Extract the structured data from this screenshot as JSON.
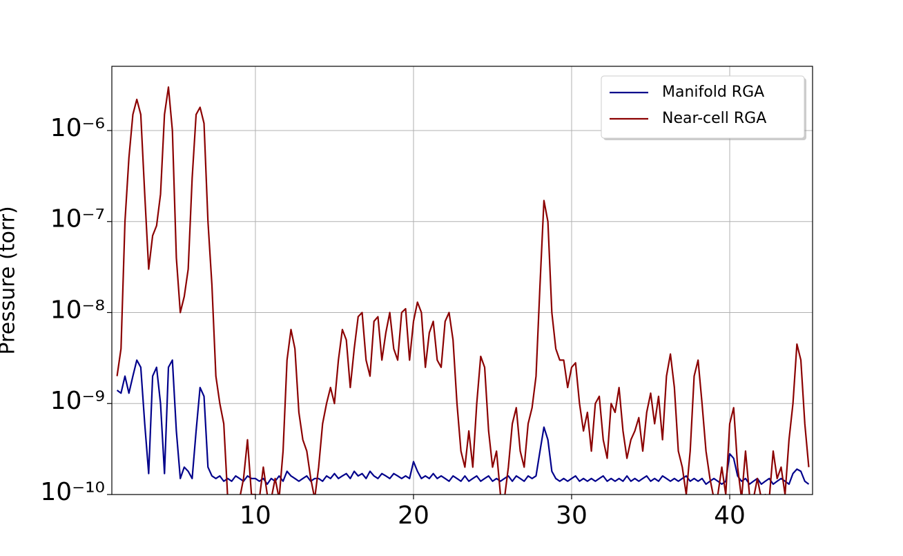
{
  "chart_data": {
    "type": "line",
    "y_label": "Pressure (torr)",
    "log_y": true,
    "grid": true,
    "legend": "upper right",
    "xlim": [
      0.92,
      45.24
    ],
    "xticks": [
      10,
      20,
      30,
      40
    ],
    "ylim": [
      1e-10,
      5.08e-06
    ],
    "yticks": [
      {
        "value": 1e-10,
        "label": "10⁻¹⁰"
      },
      {
        "value": 1e-09,
        "label": "10⁻⁹"
      },
      {
        "value": 1e-08,
        "label": "10⁻⁸"
      },
      {
        "value": 1e-07,
        "label": "10⁻⁷"
      },
      {
        "value": 1e-06,
        "label": "10⁻⁶"
      }
    ],
    "x": [
      1.25,
      1.5,
      1.75,
      2,
      2.25,
      2.5,
      2.75,
      3,
      3.25,
      3.5,
      3.75,
      4,
      4.25,
      4.5,
      4.75,
      5,
      5.25,
      5.5,
      5.75,
      6,
      6.25,
      6.5,
      6.75,
      7,
      7.25,
      7.5,
      7.75,
      8,
      8.25,
      8.5,
      8.75,
      9,
      9.25,
      9.5,
      9.75,
      10,
      10.25,
      10.5,
      10.75,
      11,
      11.25,
      11.5,
      11.75,
      12,
      12.25,
      12.5,
      12.75,
      13,
      13.25,
      13.5,
      13.75,
      14,
      14.25,
      14.5,
      14.75,
      15,
      15.25,
      15.5,
      15.75,
      16,
      16.25,
      16.5,
      16.75,
      17,
      17.25,
      17.5,
      17.75,
      18,
      18.25,
      18.5,
      18.75,
      19,
      19.25,
      19.5,
      19.75,
      20,
      20.25,
      20.5,
      20.75,
      21,
      21.25,
      21.5,
      21.75,
      22,
      22.25,
      22.5,
      22.75,
      23,
      23.25,
      23.5,
      23.75,
      24,
      24.25,
      24.5,
      24.75,
      25,
      25.25,
      25.5,
      25.75,
      26,
      26.25,
      26.5,
      26.75,
      27,
      27.25,
      27.5,
      27.75,
      28,
      28.25,
      28.5,
      28.75,
      29,
      29.25,
      29.5,
      29.75,
      30,
      30.25,
      30.5,
      30.75,
      31,
      31.25,
      31.5,
      31.75,
      32,
      32.25,
      32.5,
      32.75,
      33,
      33.25,
      33.5,
      33.75,
      34,
      34.25,
      34.5,
      34.75,
      35,
      35.25,
      35.5,
      35.75,
      36,
      36.25,
      36.5,
      36.75,
      37,
      37.25,
      37.5,
      37.75,
      38,
      38.25,
      38.5,
      38.75,
      39,
      39.25,
      39.5,
      39.75,
      40,
      40.25,
      40.5,
      40.75,
      41,
      41.25,
      41.5,
      41.75,
      42,
      42.25,
      42.5,
      42.75,
      43,
      43.25,
      43.5,
      43.75,
      44,
      44.25,
      44.5,
      44.75,
      45
    ],
    "series": [
      {
        "name": "Manifold RGA",
        "color": "#00008b",
        "values": [
          1.4e-09,
          1.3e-09,
          2e-09,
          1.3e-09,
          2e-09,
          3e-09,
          2.5e-09,
          6e-10,
          1.7e-10,
          2e-09,
          2.5e-09,
          1e-09,
          1.7e-10,
          2.5e-09,
          3e-09,
          5e-10,
          1.5e-10,
          2e-10,
          1.8e-10,
          1.5e-10,
          5e-10,
          1.5e-09,
          1.2e-09,
          2e-10,
          1.6e-10,
          1.5e-10,
          1.6e-10,
          1.4e-10,
          1.5e-10,
          1.4e-10,
          1.6e-10,
          1.5e-10,
          1.4e-10,
          1.6e-10,
          1.5e-10,
          1.5e-10,
          1.4e-10,
          1.5e-10,
          1.3e-10,
          1.5e-10,
          1.4e-10,
          1.6e-10,
          1.4e-10,
          1.8e-10,
          1.6e-10,
          1.5e-10,
          1.4e-10,
          1.5e-10,
          1.6e-10,
          1.4e-10,
          1.5e-10,
          1.5e-10,
          1.4e-10,
          1.6e-10,
          1.5e-10,
          1.7e-10,
          1.5e-10,
          1.6e-10,
          1.7e-10,
          1.5e-10,
          1.8e-10,
          1.6e-10,
          1.7e-10,
          1.5e-10,
          1.8e-10,
          1.6e-10,
          1.5e-10,
          1.7e-10,
          1.6e-10,
          1.5e-10,
          1.7e-10,
          1.6e-10,
          1.5e-10,
          1.6e-10,
          1.5e-10,
          2.3e-10,
          1.8e-10,
          1.5e-10,
          1.6e-10,
          1.5e-10,
          1.7e-10,
          1.5e-10,
          1.6e-10,
          1.5e-10,
          1.4e-10,
          1.6e-10,
          1.5e-10,
          1.4e-10,
          1.6e-10,
          1.4e-10,
          1.5e-10,
          1.6e-10,
          1.4e-10,
          1.5e-10,
          1.6e-10,
          1.4e-10,
          1.5e-10,
          1.4e-10,
          1.5e-10,
          1.6e-10,
          1.4e-10,
          1.6e-10,
          1.5e-10,
          1.4e-10,
          1.6e-10,
          1.5e-10,
          1.6e-10,
          3e-10,
          5.5e-10,
          4e-10,
          1.8e-10,
          1.5e-10,
          1.4e-10,
          1.5e-10,
          1.4e-10,
          1.5e-10,
          1.6e-10,
          1.4e-10,
          1.5e-10,
          1.4e-10,
          1.5e-10,
          1.4e-10,
          1.5e-10,
          1.6e-10,
          1.4e-10,
          1.5e-10,
          1.4e-10,
          1.5e-10,
          1.4e-10,
          1.6e-10,
          1.4e-10,
          1.5e-10,
          1.4e-10,
          1.5e-10,
          1.6e-10,
          1.4e-10,
          1.5e-10,
          1.4e-10,
          1.6e-10,
          1.5e-10,
          1.4e-10,
          1.5e-10,
          1.4e-10,
          1.5e-10,
          1.6e-10,
          1.4e-10,
          1.5e-10,
          1.4e-10,
          1.5e-10,
          1.3e-10,
          1.4e-10,
          1.5e-10,
          1.4e-10,
          1.3e-10,
          1.4e-10,
          2.8e-10,
          2.5e-10,
          1.6e-10,
          1.4e-10,
          1.5e-10,
          1.3e-10,
          1.4e-10,
          1.5e-10,
          1.3e-10,
          1.4e-10,
          1.5e-10,
          1.3e-10,
          1.4e-10,
          1.5e-10,
          1.4e-10,
          1.3e-10,
          1.7e-10,
          1.9e-10,
          1.8e-10,
          1.4e-10,
          1.3e-10
        ]
      },
      {
        "name": "Near-cell RGA",
        "color": "#8b0000",
        "values": [
          2e-09,
          4e-09,
          1e-07,
          5e-07,
          1.5e-06,
          2.2e-06,
          1.5e-06,
          2e-07,
          3e-08,
          7e-08,
          9e-08,
          2e-07,
          1.5e-06,
          3e-06,
          1e-06,
          4e-08,
          1e-08,
          1.5e-08,
          3e-08,
          3e-07,
          1.5e-06,
          1.8e-06,
          1.2e-06,
          1e-07,
          2e-08,
          2e-09,
          1e-09,
          6e-10,
          9e-11,
          9e-11,
          9e-11,
          9e-11,
          1.5e-10,
          4e-10,
          1e-10,
          1e-10,
          9e-11,
          2e-10,
          1e-10,
          9e-11,
          1.5e-10,
          9e-11,
          3e-10,
          3e-09,
          6.5e-09,
          4e-09,
          8e-10,
          4e-10,
          3e-10,
          1.5e-10,
          9e-11,
          2e-10,
          6e-10,
          1e-09,
          1.5e-09,
          1e-09,
          3e-09,
          6.5e-09,
          5e-09,
          1.5e-09,
          4e-09,
          9e-09,
          1e-08,
          3e-09,
          2e-09,
          8e-09,
          9e-09,
          3e-09,
          6e-09,
          1e-08,
          4e-09,
          3e-09,
          1e-08,
          1.1e-08,
          3e-09,
          8e-09,
          1.3e-08,
          1e-08,
          2.5e-09,
          6e-09,
          8e-09,
          3e-09,
          2.5e-09,
          8e-09,
          1e-08,
          5e-09,
          1e-09,
          3e-10,
          2e-10,
          5e-10,
          2e-10,
          1e-09,
          3.3e-09,
          2.5e-09,
          5e-10,
          2e-10,
          3e-10,
          1e-10,
          9e-11,
          2e-10,
          6e-10,
          9e-10,
          3e-10,
          2e-10,
          6e-10,
          9e-10,
          2e-09,
          2e-08,
          1.7e-07,
          1e-07,
          1e-08,
          4e-09,
          3e-09,
          3e-09,
          1.5e-09,
          2.5e-09,
          2.8e-09,
          1e-09,
          5e-10,
          8e-10,
          3e-10,
          1e-09,
          1.2e-09,
          4e-10,
          2.5e-10,
          1e-09,
          8e-10,
          1.5e-09,
          5e-10,
          2.5e-10,
          4e-10,
          5e-10,
          7e-10,
          3e-10,
          8e-10,
          1.3e-09,
          6e-10,
          1.2e-09,
          4e-10,
          2e-09,
          3.5e-09,
          1.5e-09,
          3e-10,
          2e-10,
          1e-10,
          3e-10,
          2e-09,
          3e-09,
          1e-09,
          3e-10,
          1.5e-10,
          9e-11,
          1e-10,
          2e-10,
          1e-10,
          6e-10,
          9e-10,
          2e-10,
          9e-11,
          3e-10,
          1e-10,
          9e-11,
          1.5e-10,
          9e-11,
          1e-10,
          9e-11,
          3e-10,
          1.5e-10,
          2e-10,
          1e-10,
          4e-10,
          1e-09,
          4.5e-09,
          3e-09,
          6e-10,
          2e-10
        ]
      }
    ]
  }
}
